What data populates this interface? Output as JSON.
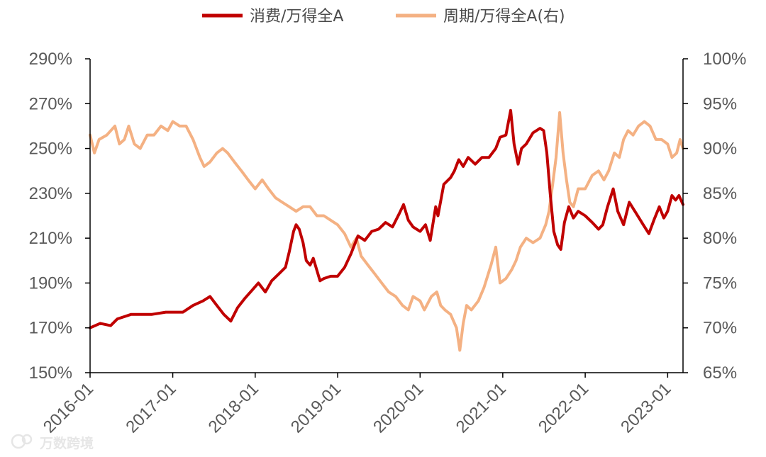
{
  "chart_data": {
    "type": "line",
    "dual_axis": true,
    "legend": {
      "placement": "top-center",
      "items": [
        {
          "label": "消费/万得全A",
          "color": "#c00000",
          "axis": "left"
        },
        {
          "label": "周期/万得全A(右)",
          "color": "#f4b183",
          "axis": "right"
        }
      ]
    },
    "x_ticks": [
      "2016-01",
      "2017-01",
      "2018-01",
      "2019-01",
      "2020-01",
      "2021-01",
      "2022-01",
      "2023-01"
    ],
    "x_range": [
      "2016-01-01",
      "2023-03-10"
    ],
    "y_left": {
      "range": [
        150,
        290
      ],
      "ticks": [
        150,
        170,
        190,
        210,
        230,
        250,
        270,
        290
      ],
      "tick_labels": [
        "150%",
        "170%",
        "190%",
        "210%",
        "230%",
        "250%",
        "270%",
        "290%"
      ]
    },
    "y_right": {
      "range": [
        65,
        100
      ],
      "ticks": [
        65,
        70,
        75,
        80,
        85,
        90,
        95,
        100
      ],
      "tick_labels": [
        "65%",
        "70%",
        "75%",
        "80%",
        "85%",
        "90%",
        "95%",
        "100%"
      ]
    },
    "grid": false,
    "series": [
      {
        "name": "消费/万得全A",
        "axis": "left",
        "color": "#c00000",
        "points": [
          [
            "2016-01-01",
            170
          ],
          [
            "2016-02-15",
            172
          ],
          [
            "2016-04-01",
            171
          ],
          [
            "2016-05-01",
            174
          ],
          [
            "2016-06-01",
            175
          ],
          [
            "2016-07-01",
            176
          ],
          [
            "2016-08-01",
            176
          ],
          [
            "2016-10-01",
            176
          ],
          [
            "2016-12-01",
            177
          ],
          [
            "2017-01-01",
            177
          ],
          [
            "2017-02-15",
            177
          ],
          [
            "2017-04-01",
            180
          ],
          [
            "2017-05-15",
            182
          ],
          [
            "2017-06-15",
            184
          ],
          [
            "2017-07-15",
            180
          ],
          [
            "2017-08-15",
            176
          ],
          [
            "2017-09-15",
            173
          ],
          [
            "2017-10-15",
            179
          ],
          [
            "2017-11-15",
            183
          ],
          [
            "2017-12-20",
            187
          ],
          [
            "2018-01-15",
            190
          ],
          [
            "2018-02-15",
            186
          ],
          [
            "2018-03-15",
            191
          ],
          [
            "2018-04-15",
            194
          ],
          [
            "2018-05-15",
            197
          ],
          [
            "2018-06-01",
            204
          ],
          [
            "2018-06-20",
            213
          ],
          [
            "2018-07-01",
            216
          ],
          [
            "2018-07-15",
            214
          ],
          [
            "2018-08-01",
            208
          ],
          [
            "2018-08-15",
            200
          ],
          [
            "2018-09-01",
            198
          ],
          [
            "2018-09-15",
            201
          ],
          [
            "2018-10-15",
            191
          ],
          [
            "2018-11-01",
            192
          ],
          [
            "2018-12-01",
            193
          ],
          [
            "2019-01-01",
            193
          ],
          [
            "2019-02-01",
            197
          ],
          [
            "2019-03-01",
            203
          ],
          [
            "2019-04-01",
            211
          ],
          [
            "2019-05-01",
            209
          ],
          [
            "2019-06-01",
            213
          ],
          [
            "2019-07-01",
            214
          ],
          [
            "2019-08-01",
            217
          ],
          [
            "2019-09-01",
            215
          ],
          [
            "2019-10-01",
            221
          ],
          [
            "2019-10-20",
            225
          ],
          [
            "2019-11-10",
            218
          ],
          [
            "2019-12-01",
            215
          ],
          [
            "2020-01-01",
            213
          ],
          [
            "2020-01-25",
            216
          ],
          [
            "2020-02-15",
            209
          ],
          [
            "2020-03-10",
            224
          ],
          [
            "2020-03-20",
            220
          ],
          [
            "2020-04-15",
            234
          ],
          [
            "2020-05-15",
            237
          ],
          [
            "2020-06-01",
            240
          ],
          [
            "2020-06-20",
            245
          ],
          [
            "2020-07-10",
            242
          ],
          [
            "2020-08-01",
            246
          ],
          [
            "2020-09-01",
            243
          ],
          [
            "2020-10-01",
            246
          ],
          [
            "2020-11-01",
            246
          ],
          [
            "2020-12-01",
            250
          ],
          [
            "2020-12-20",
            255
          ],
          [
            "2021-01-15",
            256
          ],
          [
            "2021-02-05",
            267
          ],
          [
            "2021-02-20",
            252
          ],
          [
            "2021-03-10",
            243
          ],
          [
            "2021-03-25",
            250
          ],
          [
            "2021-04-15",
            252
          ],
          [
            "2021-05-15",
            257
          ],
          [
            "2021-06-15",
            259
          ],
          [
            "2021-07-01",
            258
          ],
          [
            "2021-07-15",
            248
          ],
          [
            "2021-07-30",
            230
          ],
          [
            "2021-08-15",
            213
          ],
          [
            "2021-09-01",
            207
          ],
          [
            "2021-09-15",
            205
          ],
          [
            "2021-10-01",
            217
          ],
          [
            "2021-10-20",
            224
          ],
          [
            "2021-11-10",
            219
          ],
          [
            "2021-12-01",
            222
          ],
          [
            "2022-01-01",
            220
          ],
          [
            "2022-02-01",
            217
          ],
          [
            "2022-03-01",
            214
          ],
          [
            "2022-03-20",
            216
          ],
          [
            "2022-04-10",
            224
          ],
          [
            "2022-05-05",
            232
          ],
          [
            "2022-05-25",
            222
          ],
          [
            "2022-06-20",
            216
          ],
          [
            "2022-07-15",
            226
          ],
          [
            "2022-08-15",
            221
          ],
          [
            "2022-09-15",
            216
          ],
          [
            "2022-10-10",
            212
          ],
          [
            "2022-11-01",
            218
          ],
          [
            "2022-11-25",
            224
          ],
          [
            "2022-12-15",
            219
          ],
          [
            "2023-01-01",
            222
          ],
          [
            "2023-01-20",
            229
          ],
          [
            "2023-02-05",
            227
          ],
          [
            "2023-02-20",
            229
          ],
          [
            "2023-03-10",
            225
          ]
        ]
      },
      {
        "name": "周期/万得全A(右)",
        "axis": "right",
        "color": "#f4b183",
        "points": [
          [
            "2016-01-01",
            91.5
          ],
          [
            "2016-01-20",
            89.5
          ],
          [
            "2016-02-10",
            91.0
          ],
          [
            "2016-03-15",
            91.5
          ],
          [
            "2016-04-20",
            92.5
          ],
          [
            "2016-05-10",
            90.5
          ],
          [
            "2016-06-01",
            91.0
          ],
          [
            "2016-06-20",
            92.5
          ],
          [
            "2016-07-15",
            90.5
          ],
          [
            "2016-08-10",
            90.0
          ],
          [
            "2016-09-10",
            91.5
          ],
          [
            "2016-10-10",
            91.5
          ],
          [
            "2016-11-10",
            92.5
          ],
          [
            "2016-12-10",
            92.0
          ],
          [
            "2017-01-01",
            93.0
          ],
          [
            "2017-02-01",
            92.5
          ],
          [
            "2017-03-01",
            92.5
          ],
          [
            "2017-04-01",
            91.0
          ],
          [
            "2017-05-01",
            89.0
          ],
          [
            "2017-05-20",
            88.0
          ],
          [
            "2017-06-15",
            88.5
          ],
          [
            "2017-07-15",
            89.5
          ],
          [
            "2017-08-10",
            90.0
          ],
          [
            "2017-09-01",
            89.5
          ],
          [
            "2017-10-01",
            88.5
          ],
          [
            "2017-11-01",
            87.5
          ],
          [
            "2017-12-01",
            86.5
          ],
          [
            "2018-01-01",
            85.5
          ],
          [
            "2018-02-01",
            86.5
          ],
          [
            "2018-03-01",
            85.5
          ],
          [
            "2018-04-01",
            84.5
          ],
          [
            "2018-05-01",
            84.0
          ],
          [
            "2018-06-01",
            83.5
          ],
          [
            "2018-07-01",
            83.0
          ],
          [
            "2018-08-01",
            83.5
          ],
          [
            "2018-09-01",
            83.5
          ],
          [
            "2018-10-01",
            82.5
          ],
          [
            "2018-11-01",
            82.5
          ],
          [
            "2018-12-01",
            82.0
          ],
          [
            "2019-01-01",
            81.5
          ],
          [
            "2019-02-01",
            80.5
          ],
          [
            "2019-03-01",
            79.0
          ],
          [
            "2019-03-25",
            80.0
          ],
          [
            "2019-04-15",
            78.0
          ],
          [
            "2019-05-15",
            77.0
          ],
          [
            "2019-06-15",
            76.0
          ],
          [
            "2019-07-15",
            75.0
          ],
          [
            "2019-08-15",
            74.0
          ],
          [
            "2019-09-15",
            73.5
          ],
          [
            "2019-10-15",
            72.5
          ],
          [
            "2019-11-10",
            72.0
          ],
          [
            "2019-12-01",
            73.5
          ],
          [
            "2020-01-01",
            73.0
          ],
          [
            "2020-01-20",
            72.0
          ],
          [
            "2020-02-20",
            73.5
          ],
          [
            "2020-03-15",
            74.0
          ],
          [
            "2020-04-01",
            72.5
          ],
          [
            "2020-04-20",
            72.0
          ],
          [
            "2020-05-15",
            71.5
          ],
          [
            "2020-06-10",
            70.0
          ],
          [
            "2020-06-25",
            67.5
          ],
          [
            "2020-07-10",
            70.5
          ],
          [
            "2020-07-25",
            72.5
          ],
          [
            "2020-08-15",
            72.0
          ],
          [
            "2020-09-15",
            73.0
          ],
          [
            "2020-10-10",
            74.5
          ],
          [
            "2020-11-10",
            77.0
          ],
          [
            "2020-12-01",
            79.0
          ],
          [
            "2020-12-20",
            75.0
          ],
          [
            "2021-01-15",
            75.5
          ],
          [
            "2021-02-10",
            76.5
          ],
          [
            "2021-03-01",
            77.5
          ],
          [
            "2021-03-20",
            79.0
          ],
          [
            "2021-04-15",
            80.0
          ],
          [
            "2021-05-15",
            79.5
          ],
          [
            "2021-06-15",
            80.0
          ],
          [
            "2021-07-10",
            81.5
          ],
          [
            "2021-07-25",
            83.0
          ],
          [
            "2021-08-10",
            86.0
          ],
          [
            "2021-08-25",
            89.0
          ],
          [
            "2021-09-10",
            94.0
          ],
          [
            "2021-09-25",
            89.5
          ],
          [
            "2021-10-10",
            86.5
          ],
          [
            "2021-10-25",
            84.0
          ],
          [
            "2021-11-10",
            83.5
          ],
          [
            "2021-12-01",
            85.5
          ],
          [
            "2022-01-01",
            85.5
          ],
          [
            "2022-02-01",
            87.0
          ],
          [
            "2022-03-01",
            87.5
          ],
          [
            "2022-03-25",
            86.5
          ],
          [
            "2022-04-15",
            87.5
          ],
          [
            "2022-05-10",
            89.5
          ],
          [
            "2022-06-01",
            89.0
          ],
          [
            "2022-06-20",
            91.0
          ],
          [
            "2022-07-10",
            92.0
          ],
          [
            "2022-08-01",
            91.5
          ],
          [
            "2022-08-25",
            92.5
          ],
          [
            "2022-09-20",
            93.0
          ],
          [
            "2022-10-15",
            92.5
          ],
          [
            "2022-11-10",
            91.0
          ],
          [
            "2022-12-05",
            91.0
          ],
          [
            "2023-01-01",
            90.5
          ],
          [
            "2023-01-20",
            89.0
          ],
          [
            "2023-02-10",
            89.5
          ],
          [
            "2023-02-25",
            91.0
          ],
          [
            "2023-03-10",
            90.0
          ]
        ]
      }
    ]
  },
  "watermark": {
    "text": "万数跨境"
  }
}
